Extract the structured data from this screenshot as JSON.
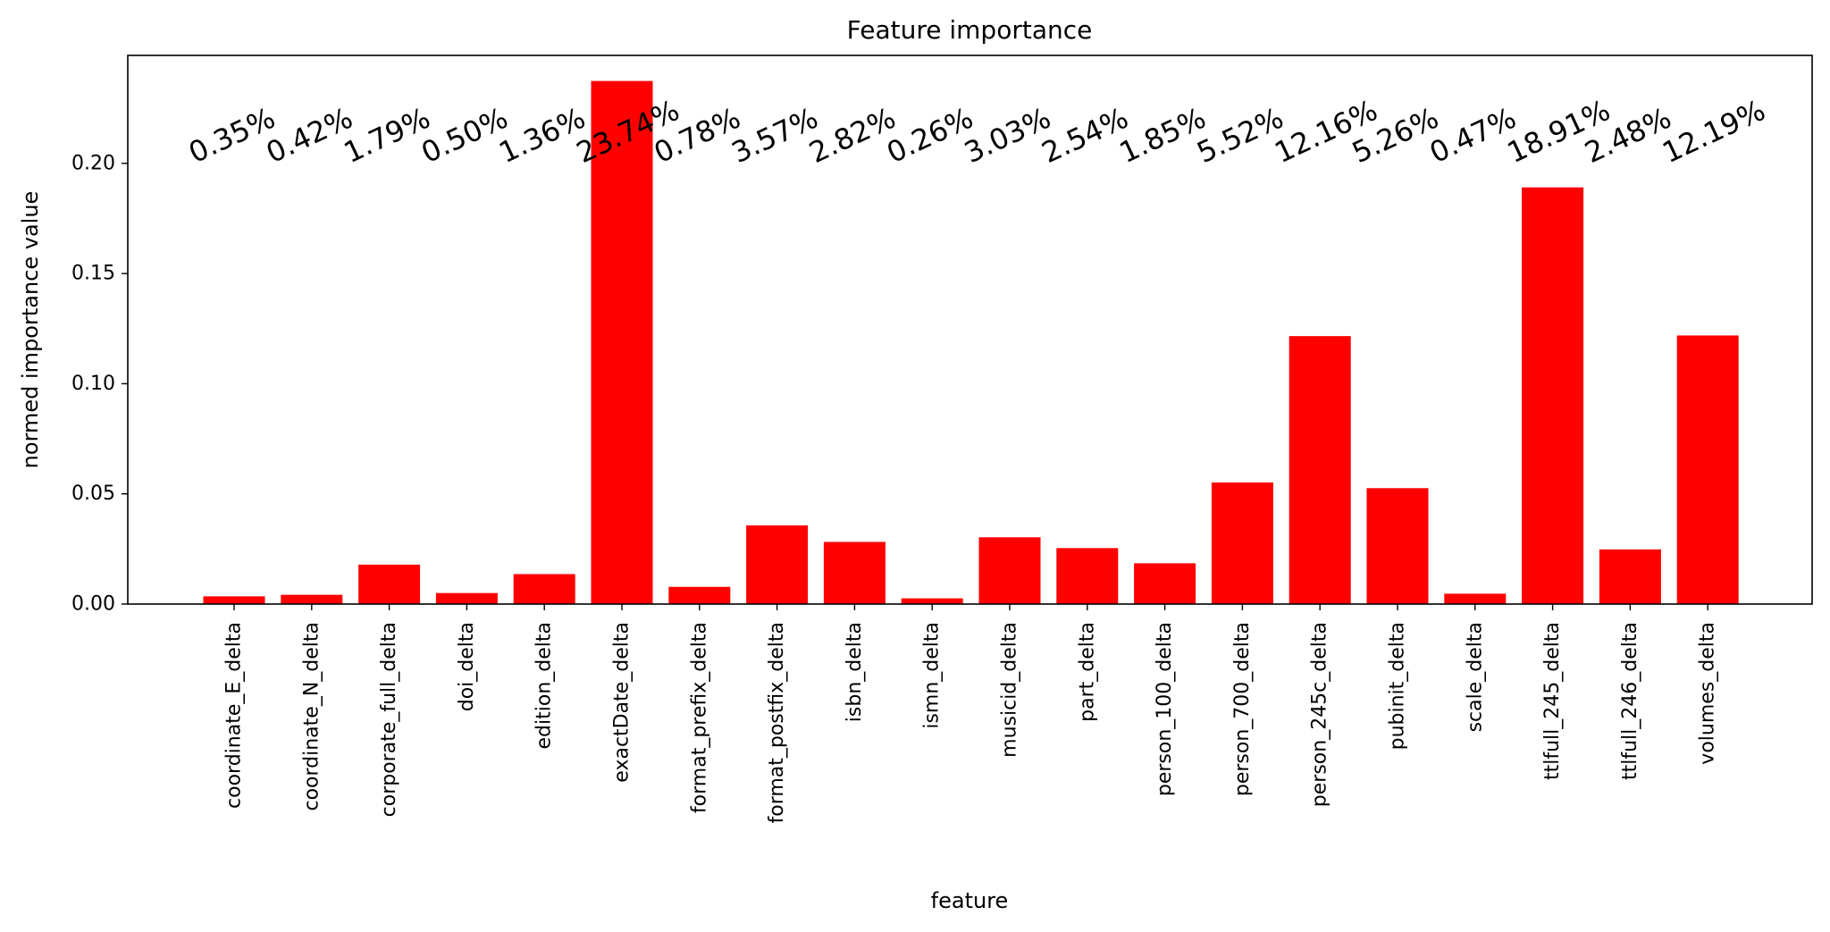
{
  "chart_data": {
    "type": "bar",
    "title": "Feature importance",
    "xlabel": "feature",
    "ylabel": "normed importance value",
    "categories": [
      "coordinate_E_delta",
      "coordinate_N_delta",
      "corporate_full_delta",
      "doi_delta",
      "edition_delta",
      "exactDate_delta",
      "format_prefix_delta",
      "format_postfix_delta",
      "isbn_delta",
      "ismn_delta",
      "musicid_delta",
      "part_delta",
      "person_100_delta",
      "person_700_delta",
      "person_245c_delta",
      "pubinit_delta",
      "scale_delta",
      "ttlfull_245_delta",
      "ttlfull_246_delta",
      "volumes_delta"
    ],
    "values": [
      0.0035,
      0.0042,
      0.0179,
      0.005,
      0.0136,
      0.2374,
      0.0078,
      0.0357,
      0.0282,
      0.0026,
      0.0303,
      0.0254,
      0.0185,
      0.0552,
      0.1216,
      0.0526,
      0.0047,
      0.1891,
      0.0248,
      0.1219
    ],
    "data_labels": [
      "0.35%",
      "0.42%",
      "1.79%",
      "0.50%",
      "1.36%",
      "23.74%",
      "0.78%",
      "3.57%",
      "2.82%",
      "0.26%",
      "3.03%",
      "2.54%",
      "1.85%",
      "5.52%",
      "12.16%",
      "5.26%",
      "0.47%",
      "18.91%",
      "2.48%",
      "12.19%"
    ],
    "yticks": [
      "0.00",
      "0.05",
      "0.10",
      "0.15",
      "0.20"
    ],
    "ytick_values": [
      0,
      0.05,
      0.1,
      0.15,
      0.2
    ],
    "ylim": [
      0,
      0.249
    ],
    "bar_color": "#ff0000",
    "grid": false
  }
}
